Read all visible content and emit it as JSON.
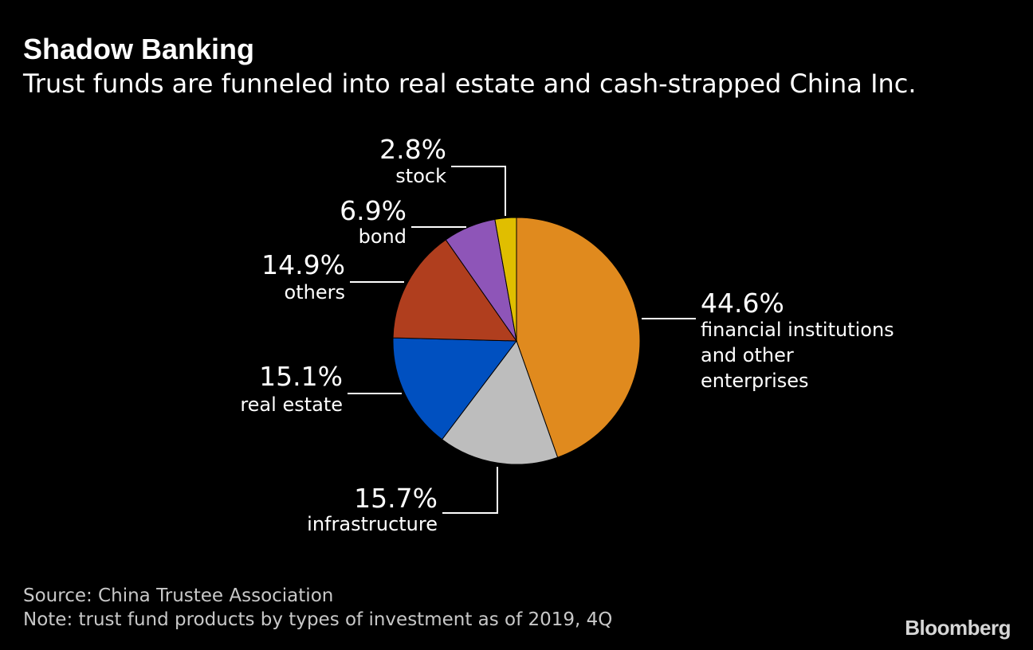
{
  "title": "Shadow Banking",
  "subtitle": "Trust funds are funneled into real estate and cash-strapped China Inc.",
  "source": "Source: China Trustee Association",
  "note": "Note: trust fund products by types of investment as of 2019, 4Q",
  "brand": "Bloomberg",
  "chart_data": {
    "type": "pie",
    "title": "",
    "start_angle_deg": 0,
    "direction": "clockwise",
    "slices": [
      {
        "key": "financial",
        "value": 44.6,
        "value_label": "44.6%",
        "label_lines": [
          "financial institutions",
          "and other",
          "enterprises"
        ],
        "color": "#e08a1e"
      },
      {
        "key": "infrastructure",
        "value": 15.7,
        "value_label": "15.7%",
        "label_lines": [
          "infrastructure"
        ],
        "color": "#bdbdbd"
      },
      {
        "key": "real-estate",
        "value": 15.1,
        "value_label": "15.1%",
        "label_lines": [
          "real estate"
        ],
        "color": "#0050c0"
      },
      {
        "key": "others",
        "value": 14.9,
        "value_label": "14.9%",
        "label_lines": [
          "others"
        ],
        "color": "#b03e1e"
      },
      {
        "key": "bond",
        "value": 6.9,
        "value_label": "6.9%",
        "label_lines": [
          "bond"
        ],
        "color": "#8e55b8"
      },
      {
        "key": "stock",
        "value": 2.8,
        "value_label": "2.8%",
        "label_lines": [
          "stock"
        ],
        "color": "#e0be00"
      }
    ]
  }
}
